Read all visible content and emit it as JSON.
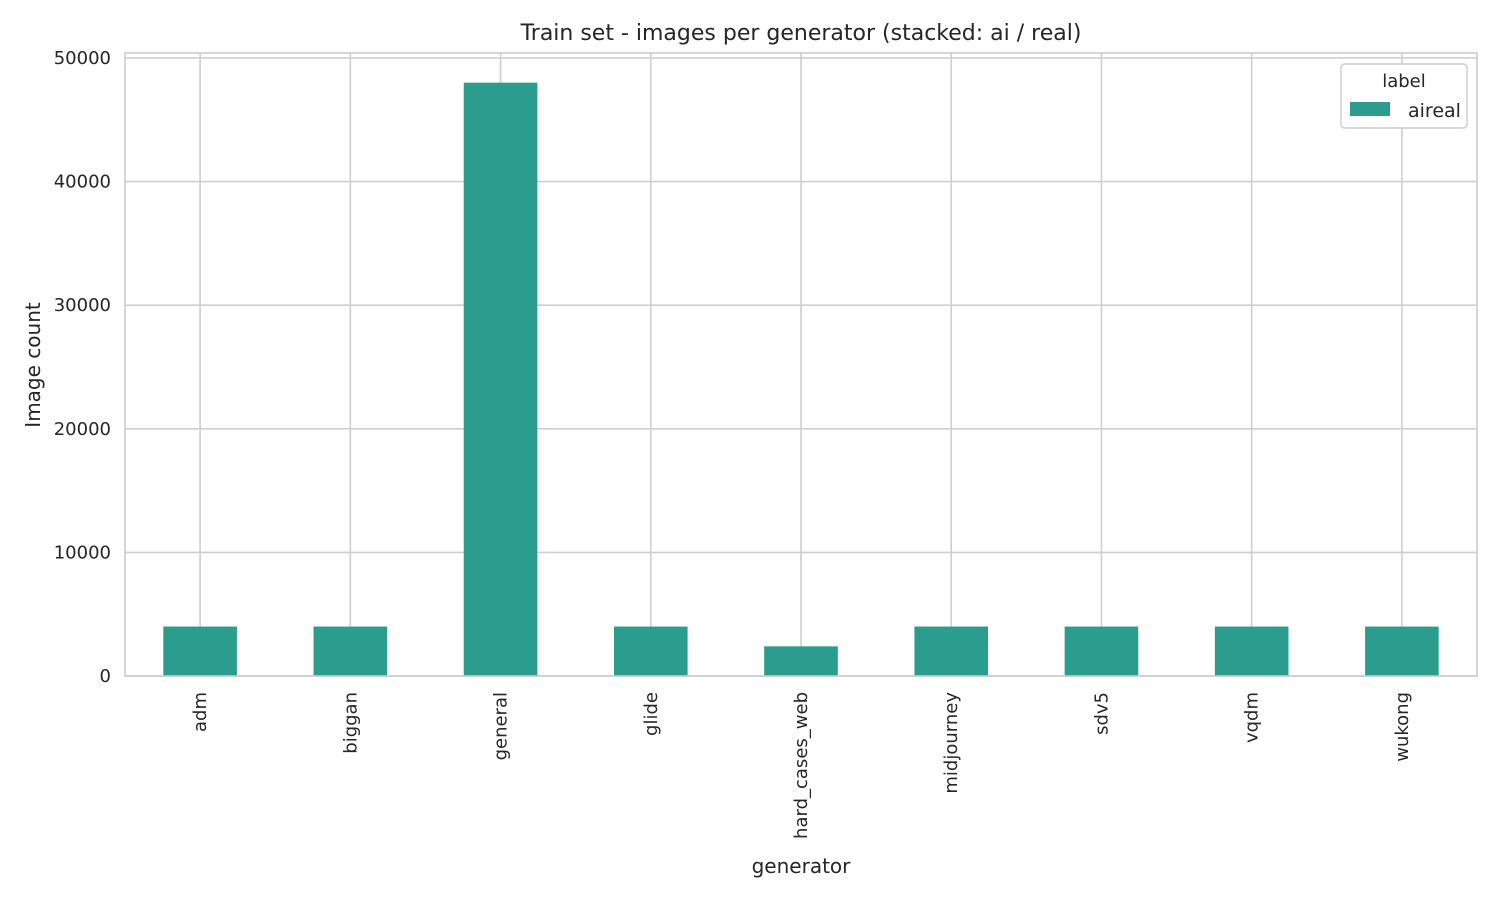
{
  "chart_data": {
    "type": "bar",
    "stacked": true,
    "title": "Train set - images per generator (stacked: ai / real)",
    "xlabel": "generator",
    "ylabel": "Image count",
    "categories": [
      "adm",
      "biggan",
      "general",
      "glide",
      "hard_cases_web",
      "midjourney",
      "sdv5",
      "vqdm",
      "wukong"
    ],
    "series": [
      {
        "name": "aireal",
        "color": "#2a9d8f",
        "values": [
          4000,
          4000,
          48000,
          4000,
          2400,
          4000,
          4000,
          4000,
          4000
        ]
      }
    ],
    "yticks": [
      0,
      10000,
      20000,
      30000,
      40000,
      50000
    ],
    "ylim": [
      0,
      50400
    ],
    "grid": true,
    "legend": {
      "title": "label",
      "position": "top-right"
    }
  }
}
